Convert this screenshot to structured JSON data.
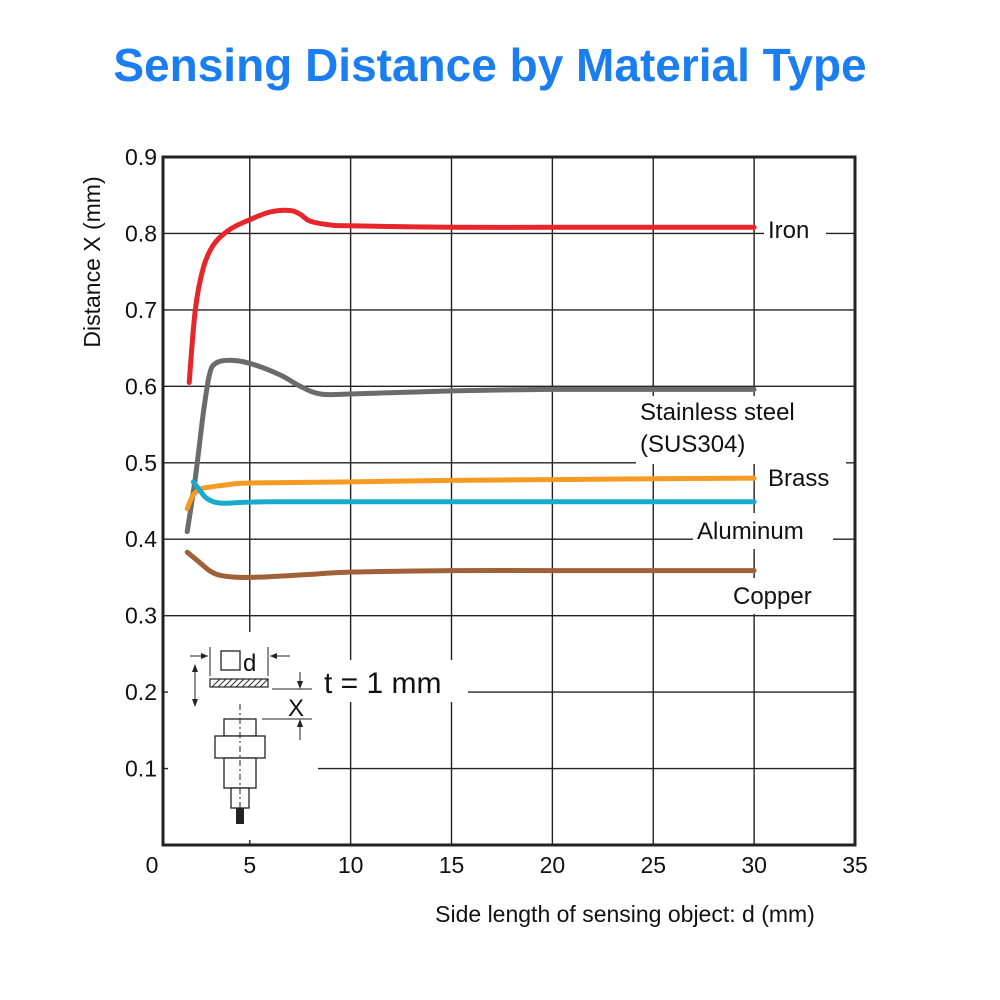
{
  "chart_data": {
    "type": "line",
    "title": "Sensing Distance by Material Type",
    "xlabel": "Side length of sensing object: d (mm)",
    "ylabel": "Distance X (mm)",
    "xlim": [
      0,
      35
    ],
    "ylim": [
      0,
      0.9
    ],
    "xticks": [
      0,
      5,
      10,
      15,
      20,
      25,
      30,
      35
    ],
    "yticks": [
      0.1,
      0.2,
      0.3,
      0.4,
      0.5,
      0.6,
      0.7,
      0.8,
      0.9
    ],
    "ytick_labels": [
      "0.1",
      "0.2",
      "0.3",
      "0.4",
      "0.5",
      "0.6",
      "0.7",
      "0.8",
      "0.9"
    ],
    "grid": true,
    "annotation": "t = 1 mm",
    "series": [
      {
        "name": "Iron",
        "label_lines": [
          "Iron"
        ],
        "color": "#e8252a",
        "x": [
          2,
          2.3,
          2.7,
          3.2,
          4,
          5,
          6,
          7,
          7.5,
          8,
          9,
          10,
          15,
          20,
          25,
          30
        ],
        "y": [
          0.605,
          0.7,
          0.755,
          0.785,
          0.805,
          0.818,
          0.828,
          0.83,
          0.825,
          0.816,
          0.811,
          0.81,
          0.808,
          0.808,
          0.808,
          0.808
        ]
      },
      {
        "name": "Stainless steel (SUS304)",
        "label_lines": [
          "Stainless steel",
          "(SUS304)"
        ],
        "color": "#6b6b6b",
        "x": [
          1.9,
          2.3,
          2.7,
          3,
          3.3,
          4,
          5,
          6.5,
          7.5,
          8.5,
          10,
          15,
          20,
          25,
          30
        ],
        "y": [
          0.41,
          0.48,
          0.565,
          0.615,
          0.63,
          0.634,
          0.63,
          0.615,
          0.6,
          0.59,
          0.59,
          0.594,
          0.596,
          0.596,
          0.596
        ]
      },
      {
        "name": "Brass",
        "label_lines": [
          "Brass"
        ],
        "color": "#f59a23",
        "x": [
          1.9,
          2.2,
          2.6,
          3,
          3.5,
          4.5,
          6,
          10,
          15,
          20,
          25,
          30
        ],
        "y": [
          0.44,
          0.458,
          0.466,
          0.468,
          0.47,
          0.473,
          0.474,
          0.475,
          0.477,
          0.478,
          0.479,
          0.48
        ]
      },
      {
        "name": "Aluminum",
        "label_lines": [
          "Aluminum"
        ],
        "color": "#1ba9cc",
        "x": [
          2.2,
          2.5,
          2.8,
          3.2,
          3.7,
          4.5,
          6,
          10,
          15,
          20,
          25,
          30
        ],
        "y": [
          0.475,
          0.465,
          0.455,
          0.449,
          0.447,
          0.448,
          0.449,
          0.449,
          0.449,
          0.449,
          0.449,
          0.449
        ]
      },
      {
        "name": "Copper",
        "label_lines": [
          "Copper"
        ],
        "color": "#a06038",
        "x": [
          1.9,
          2.5,
          3,
          3.5,
          4.5,
          6,
          8,
          10,
          15,
          20,
          25,
          30
        ],
        "y": [
          0.383,
          0.37,
          0.359,
          0.353,
          0.35,
          0.351,
          0.354,
          0.357,
          0.359,
          0.359,
          0.359,
          0.359
        ]
      }
    ],
    "inset_labels": {
      "d_label": "d",
      "x_label": "X"
    }
  }
}
